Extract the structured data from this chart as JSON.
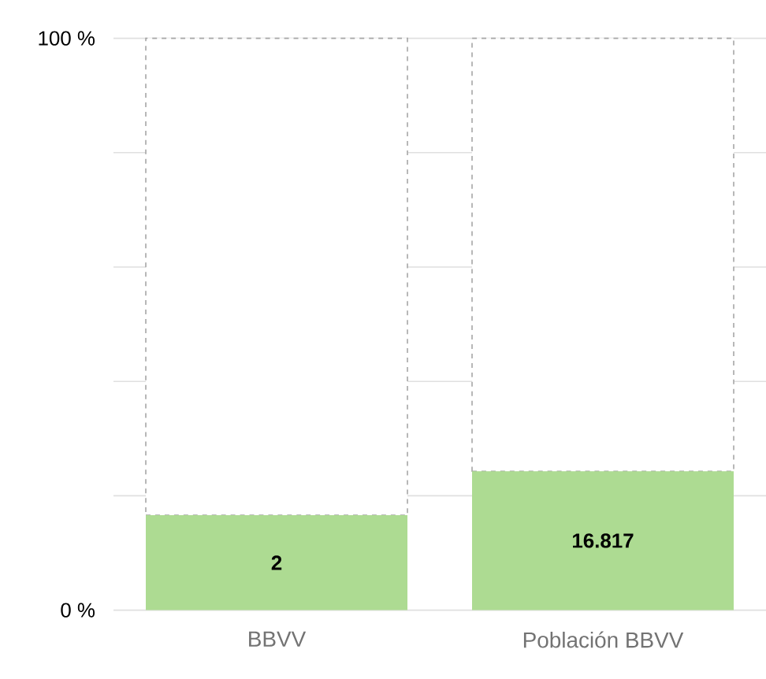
{
  "chart_data": {
    "type": "bar",
    "categories": [
      "BBVV",
      "Población BBVV"
    ],
    "stacked": true,
    "series": [
      {
        "color": "#addb92",
        "values": [
          16.6,
          24.3
        ]
      },
      {
        "color": "#a6a6a6",
        "values": [
          83.4,
          75.7
        ],
        "line_style": "dashed"
      }
    ],
    "annotations": [
      "2",
      "16.817"
    ],
    "ylim": [
      0,
      100
    ],
    "yticks": [
      {
        "value": 0,
        "label": "0 %"
      },
      {
        "value": 20,
        "label": null
      },
      {
        "value": 40,
        "label": null
      },
      {
        "value": 60,
        "label": null
      },
      {
        "value": 80,
        "label": null
      },
      {
        "value": 100,
        "label": "100 %"
      }
    ],
    "grid": "y"
  }
}
